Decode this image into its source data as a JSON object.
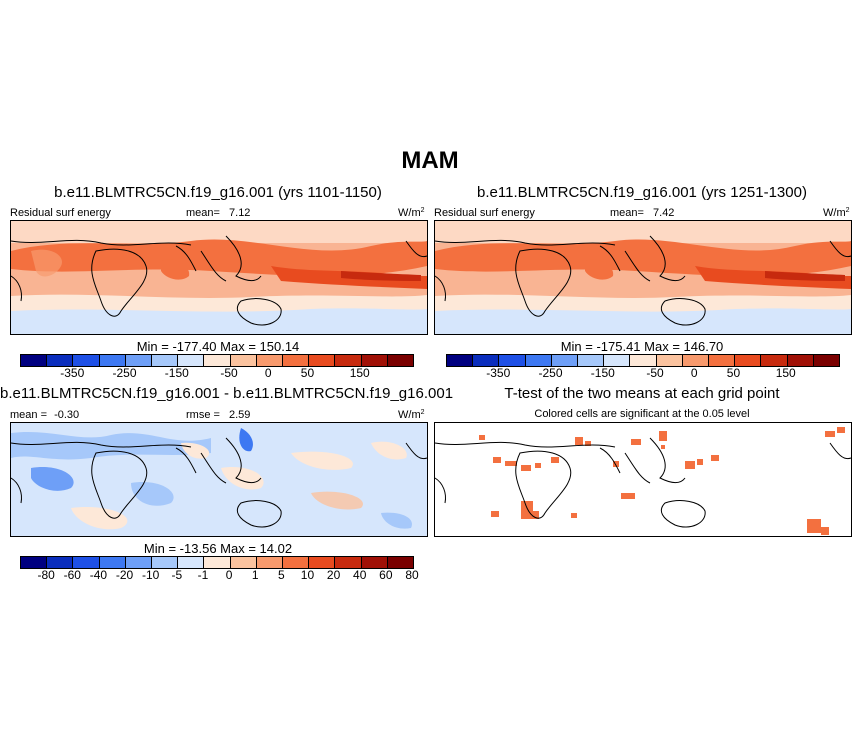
{
  "figure": {
    "title": "MAM"
  },
  "panels": {
    "p1": {
      "title": "b.e11.BLMTRC5CN.f19_g16.001 (yrs 1101-1150)",
      "variable": "Residual surf energy",
      "mean_label": "mean=",
      "mean_value": "7.12",
      "units": "W/m",
      "units_sup": "2",
      "min_max": "Min = -177.40 Max = 150.14"
    },
    "p2": {
      "title": "b.e11.BLMTRC5CN.f19_g16.001 (yrs 1251-1300)",
      "variable": "Residual surf energy",
      "mean_label": "mean=",
      "mean_value": "7.42",
      "units": "W/m",
      "units_sup": "2",
      "min_max": "Min = -175.41 Max = 146.70"
    },
    "p3": {
      "title": "b.e11.BLMTRC5CN.f19_g16.001 - b.e11.BLMTRC5CN.f19_g16.001",
      "mean_label": "mean =",
      "mean_value": "-0.30",
      "rmse_label": "rmse =",
      "rmse_value": "2.59",
      "units": "W/m",
      "units_sup": "2",
      "min_max": "Min = -13.56 Max = 14.02"
    },
    "p4": {
      "title": "T-test of the two means at each grid point",
      "subtitle": "Colored cells are significant at the 0.05 level"
    }
  },
  "colorbars": {
    "abs": {
      "colors": [
        "#000080",
        "#0a2dbd",
        "#1e50e6",
        "#3d78f2",
        "#6e9ff7",
        "#a6c8fa",
        "#d6e6fc",
        "#fde8d8",
        "#fbc39f",
        "#f89a6d",
        "#f3703f",
        "#e84b1f",
        "#c72a0e",
        "#a01006",
        "#7a0000"
      ],
      "ticks": [
        "-350",
        "-250",
        "-150",
        "-50",
        "0",
        "50",
        "150"
      ]
    },
    "diff": {
      "colors": [
        "#000080",
        "#0a2dbd",
        "#1e50e6",
        "#3d78f2",
        "#6e9ff7",
        "#a6c8fa",
        "#d6e6fc",
        "#fde8d8",
        "#fbc39f",
        "#f89a6d",
        "#f3703f",
        "#e84b1f",
        "#c72a0e",
        "#a01006",
        "#7a0000"
      ],
      "ticks": [
        "-80",
        "-60",
        "-40",
        "-20",
        "-10",
        "-5",
        "-1",
        "0",
        "1",
        "5",
        "10",
        "20",
        "40",
        "60",
        "80"
      ]
    }
  }
}
